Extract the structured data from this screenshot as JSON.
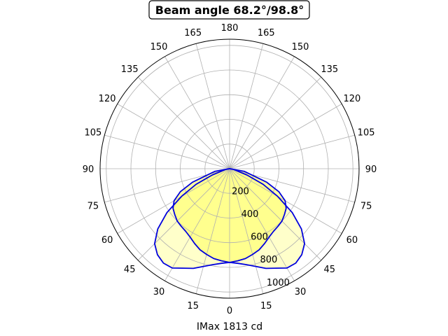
{
  "chart_data": {
    "type": "polar",
    "title": "Beam angle 68.2°/98.8°",
    "xlabel": "IMax 1813 cd",
    "rmax": 1050,
    "radial_ticks": [
      "200",
      "400",
      "600",
      "800",
      "1000"
    ],
    "radial_values": [
      200,
      400,
      600,
      800,
      1000
    ],
    "angle_ticks_right": [
      "0",
      "15",
      "30",
      "45",
      "60",
      "75",
      "90",
      "105",
      "120",
      "135",
      "150",
      "165",
      "180"
    ],
    "angle_ticks_left": [
      "15",
      "30",
      "45",
      "60",
      "75",
      "90",
      "105",
      "120",
      "135",
      "150",
      "165"
    ],
    "grid": true,
    "colors": {
      "line": "#0000dd",
      "fill": "#ffff66",
      "grid": "#b0b0b0"
    },
    "series": [
      {
        "angles": [
          0,
          5,
          10,
          15,
          20,
          25,
          30,
          35,
          40,
          45,
          50,
          55,
          60,
          65,
          70,
          80,
          90
        ],
        "values": [
          760,
          770,
          790,
          820,
          860,
          890,
          930,
          935,
          910,
          860,
          760,
          620,
          450,
          300,
          150,
          30,
          0
        ]
      },
      {
        "angles": [
          0,
          5,
          10,
          15,
          20,
          25,
          30,
          35,
          40,
          45,
          50,
          55,
          60,
          65,
          70,
          80,
          90
        ],
        "values": [
          760,
          750,
          740,
          720,
          700,
          670,
          640,
          620,
          610,
          600,
          580,
          560,
          520,
          440,
          320,
          120,
          0
        ]
      }
    ]
  }
}
